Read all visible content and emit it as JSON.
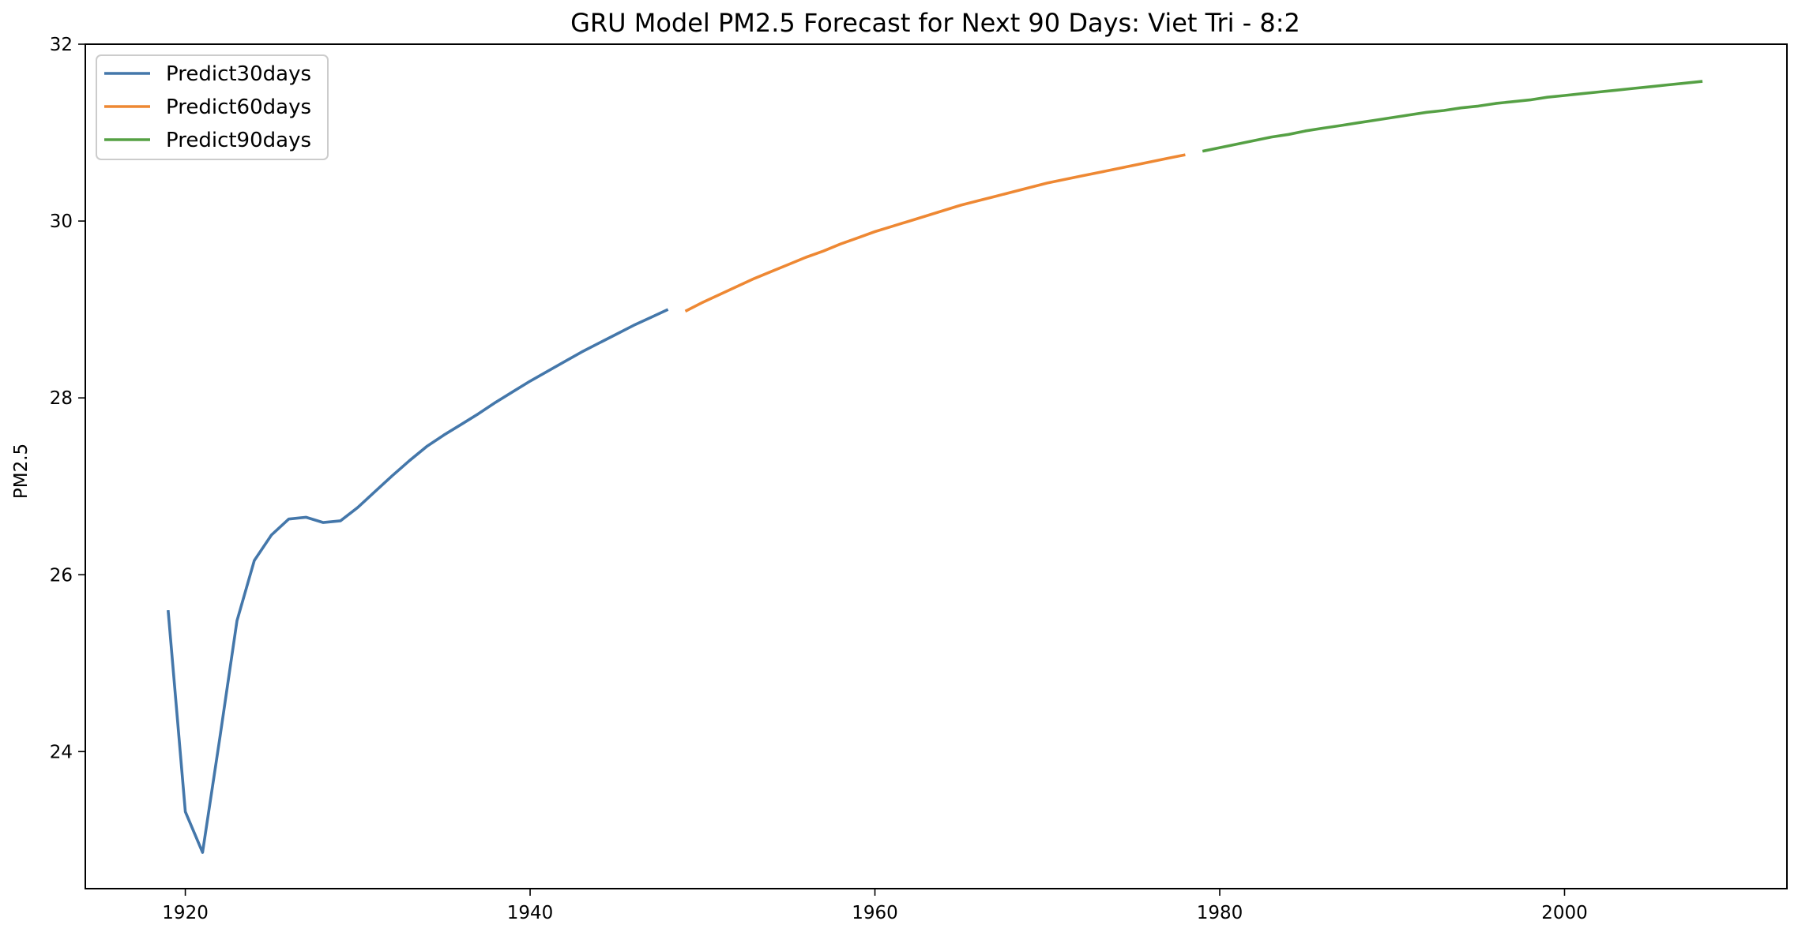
{
  "chart_data": {
    "type": "line",
    "title": "GRU Model PM2.5 Forecast for Next 90 Days: Viet Tri - 8:2",
    "xlabel": "",
    "ylabel": "PM2.5",
    "xlim": [
      1914.2,
      2012.9
    ],
    "ylim": [
      22.45,
      32.0
    ],
    "x_ticks": [
      1920,
      1940,
      1960,
      1980,
      2000
    ],
    "y_ticks": [
      24,
      26,
      28,
      30,
      32
    ],
    "grid": false,
    "legend_position": "top-left",
    "series": [
      {
        "name": "Predict30days",
        "color": "#4477aa",
        "x": [
          1919,
          1920,
          1921,
          1922,
          1923,
          1924,
          1925,
          1926,
          1927,
          1928,
          1929,
          1930,
          1931,
          1932,
          1933,
          1934,
          1935,
          1936,
          1937,
          1938,
          1939,
          1940,
          1941,
          1942,
          1943,
          1944,
          1945,
          1946,
          1947,
          1948
        ],
        "values": [
          25.6,
          23.32,
          22.86,
          24.15,
          25.48,
          26.16,
          26.45,
          26.63,
          26.65,
          26.59,
          26.61,
          26.76,
          26.94,
          27.12,
          27.29,
          27.45,
          27.58,
          27.7,
          27.82,
          27.95,
          28.07,
          28.19,
          28.3,
          28.41,
          28.52,
          28.62,
          28.72,
          28.82,
          28.91,
          29.0
        ]
      },
      {
        "name": "Predict60days",
        "color": "#ee8833",
        "x": [
          1949,
          1950,
          1951,
          1952,
          1953,
          1954,
          1955,
          1956,
          1957,
          1958,
          1959,
          1960,
          1961,
          1962,
          1963,
          1964,
          1965,
          1966,
          1967,
          1968,
          1969,
          1970,
          1971,
          1972,
          1973,
          1974,
          1975,
          1976,
          1977,
          1978
        ],
        "values": [
          28.98,
          29.08,
          29.17,
          29.26,
          29.35,
          29.43,
          29.51,
          29.59,
          29.66,
          29.74,
          29.81,
          29.88,
          29.94,
          30.0,
          30.06,
          30.12,
          30.18,
          30.23,
          30.28,
          30.33,
          30.38,
          30.43,
          30.47,
          30.51,
          30.55,
          30.59,
          30.63,
          30.67,
          30.71,
          30.75
        ]
      },
      {
        "name": "Predict90days",
        "color": "#55a044",
        "x": [
          1979,
          1980,
          1981,
          1982,
          1983,
          1984,
          1985,
          1986,
          1987,
          1988,
          1989,
          1990,
          1991,
          1992,
          1993,
          1994,
          1995,
          1996,
          1997,
          1998,
          1999,
          2000,
          2001,
          2002,
          2003,
          2004,
          2005,
          2006,
          2007,
          2008
        ],
        "values": [
          30.79,
          30.83,
          30.87,
          30.91,
          30.95,
          30.98,
          31.02,
          31.05,
          31.08,
          31.11,
          31.14,
          31.17,
          31.2,
          31.23,
          31.25,
          31.28,
          31.3,
          31.33,
          31.35,
          31.37,
          31.4,
          31.42,
          31.44,
          31.46,
          31.48,
          31.5,
          31.52,
          31.54,
          31.56,
          31.58
        ]
      }
    ]
  }
}
